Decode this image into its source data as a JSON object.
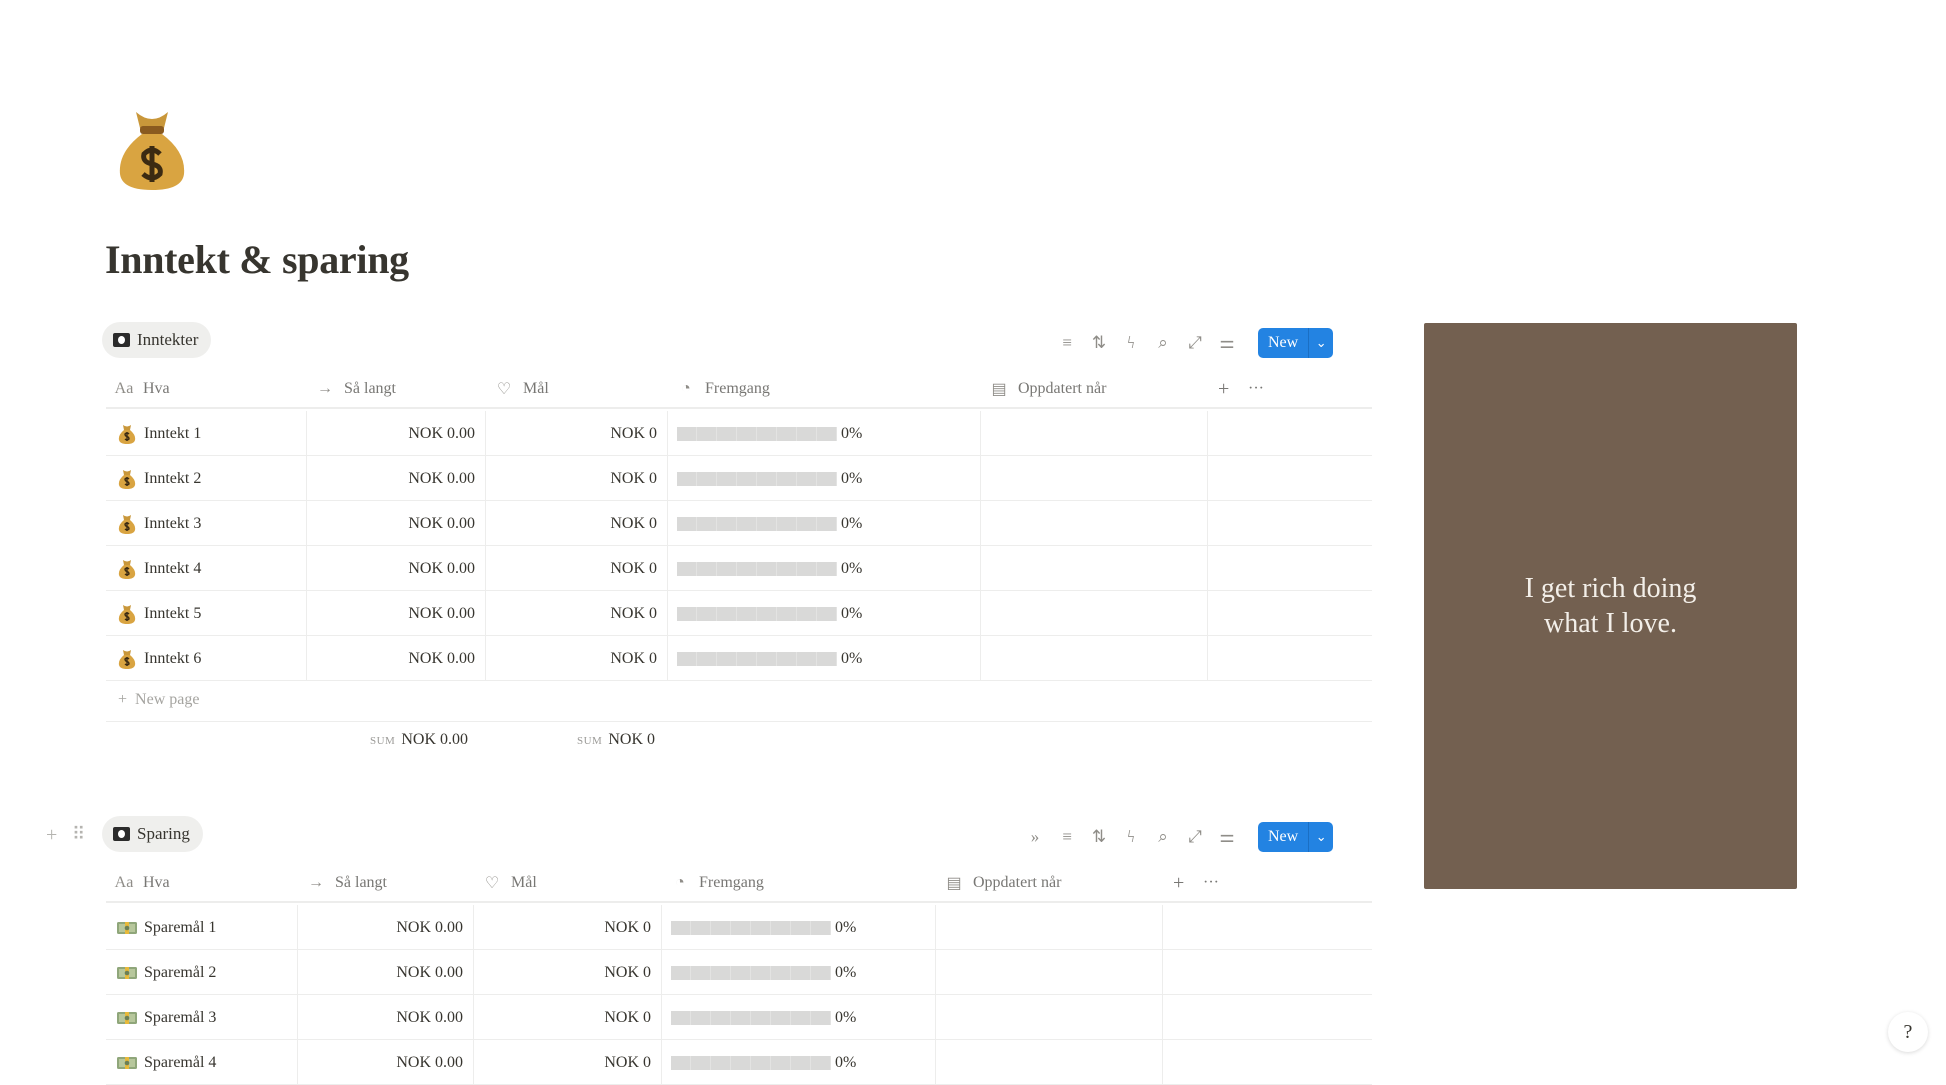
{
  "page": {
    "icon": "money-bag-icon",
    "title": "Inntekt & sparing"
  },
  "columns": {
    "name": "Hva",
    "so_far": "Så langt",
    "goal": "Mål",
    "progress": "Fremgang",
    "updated": "Oppdatert når",
    "add": "+",
    "more": "···"
  },
  "toolbar": {
    "new_label": "New",
    "icons": [
      "filter-icon",
      "sort-icon",
      "automation-icon",
      "search-icon",
      "expand-icon",
      "settings-icon"
    ]
  },
  "income": {
    "tab": "Inntekter",
    "rows": [
      {
        "name": "Inntekt 1",
        "so_far": "NOK 0.00",
        "goal": "NOK 0",
        "progress": "0%"
      },
      {
        "name": "Inntekt 2",
        "so_far": "NOK 0.00",
        "goal": "NOK 0",
        "progress": "0%"
      },
      {
        "name": "Inntekt 3",
        "so_far": "NOK 0.00",
        "goal": "NOK 0",
        "progress": "0%"
      },
      {
        "name": "Inntekt 4",
        "so_far": "NOK 0.00",
        "goal": "NOK 0",
        "progress": "0%"
      },
      {
        "name": "Inntekt 5",
        "so_far": "NOK 0.00",
        "goal": "NOK 0",
        "progress": "0%"
      },
      {
        "name": "Inntekt 6",
        "so_far": "NOK 0.00",
        "goal": "NOK 0",
        "progress": "0%"
      }
    ],
    "new_page": "New page",
    "sum_label": "SUM",
    "sum_so_far": "NOK 0.00",
    "sum_goal": "NOK 0"
  },
  "savings": {
    "tab": "Sparing",
    "rows": [
      {
        "name": "Sparemål 1",
        "so_far": "NOK 0.00",
        "goal": "NOK 0",
        "progress": "0%"
      },
      {
        "name": "Sparemål 2",
        "so_far": "NOK 0.00",
        "goal": "NOK 0",
        "progress": "0%"
      },
      {
        "name": "Sparemål 3",
        "so_far": "NOK 0.00",
        "goal": "NOK 0",
        "progress": "0%"
      },
      {
        "name": "Sparemål 4",
        "so_far": "NOK 0.00",
        "goal": "NOK 0",
        "progress": "0%"
      }
    ]
  },
  "quote": {
    "line1": "I get rich doing",
    "line2": "what I love.",
    "background": "#736050"
  },
  "accent": "#2383e2"
}
